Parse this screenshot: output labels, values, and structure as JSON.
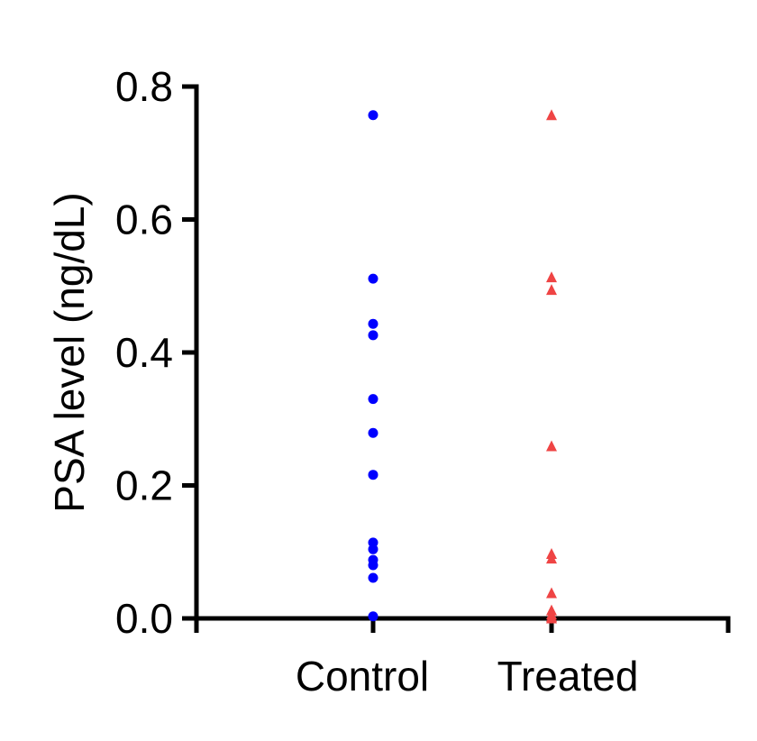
{
  "chart_data": {
    "type": "scatter",
    "title": "",
    "xlabel": "",
    "ylabel": "PSA level (ng/dL)",
    "ylim": [
      0,
      0.8
    ],
    "yticks": [
      "0.0",
      "0.2",
      "0.4",
      "0.6",
      "0.8"
    ],
    "categories": [
      "Control",
      "Treated"
    ],
    "grid": false,
    "legend": "none",
    "series": [
      {
        "category": "Control",
        "marker": "circle",
        "color": "#0000ff",
        "values": [
          0.757,
          0.511,
          0.443,
          0.426,
          0.33,
          0.279,
          0.216,
          0.114,
          0.104,
          0.088,
          0.08,
          0.061,
          0.003
        ]
      },
      {
        "category": "Treated",
        "marker": "triangle",
        "color": "#ef4444",
        "values": [
          0.757,
          0.513,
          0.494,
          0.259,
          0.097,
          0.09,
          0.038,
          0.012,
          0.006,
          0.002,
          0.0
        ]
      }
    ]
  }
}
